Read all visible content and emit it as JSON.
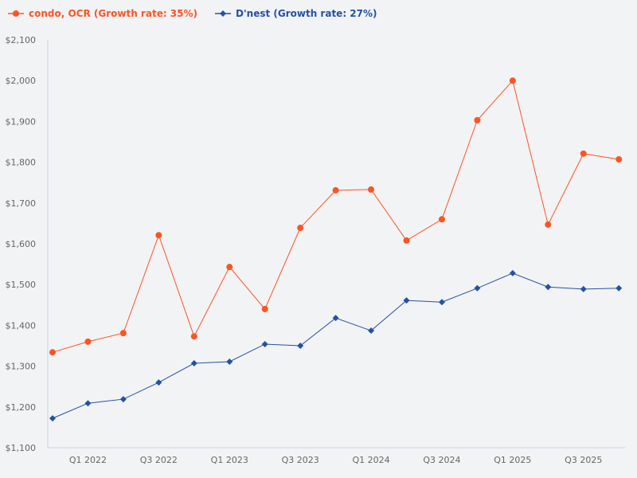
{
  "chart_data": {
    "type": "line",
    "title": "",
    "xlabel": "",
    "ylabel": "",
    "ylim": [
      1100,
      2100
    ],
    "y_ticks": [
      "$1,100",
      "$1,200",
      "$1,300",
      "$1,400",
      "$1,500",
      "$1,600",
      "$1,700",
      "$1,800",
      "$1,900",
      "$2,000",
      "$2,100"
    ],
    "y_tick_values": [
      1100,
      1200,
      1300,
      1400,
      1500,
      1600,
      1700,
      1800,
      1900,
      2000,
      2100
    ],
    "x": [
      "Q4 2021",
      "Q1 2022",
      "Q2 2022",
      "Q3 2022",
      "Q4 2022",
      "Q1 2023",
      "Q2 2023",
      "Q3 2023",
      "Q4 2023",
      "Q1 2024",
      "Q2 2024",
      "Q3 2024",
      "Q4 2024",
      "Q1 2025",
      "Q2 2025",
      "Q3 2025",
      "Q4 2025"
    ],
    "x_tick_labels": [
      "Q1 2022",
      "Q3 2022",
      "Q1 2023",
      "Q3 2023",
      "Q1 2024",
      "Q3 2024",
      "Q1 2025",
      "Q3 2025"
    ],
    "grid": false,
    "legend_position": "top-left",
    "series": [
      {
        "name": "condo, OCR (Growth rate: 35%)",
        "color": "#fc5424",
        "marker": "circle",
        "values": [
          1334,
          1360,
          1381,
          1621,
          1373,
          1543,
          1440,
          1639,
          1731,
          1733,
          1608,
          1660,
          1903,
          2000,
          1647,
          1821,
          1807
        ]
      },
      {
        "name": "D'nest (Growth rate: 27%)",
        "color": "#2451a4",
        "marker": "diamond",
        "values": [
          1172,
          1209,
          1219,
          1260,
          1307,
          1311,
          1354,
          1350,
          1418,
          1387,
          1461,
          1457,
          1491,
          1528,
          1494,
          1489,
          1491
        ]
      }
    ]
  }
}
